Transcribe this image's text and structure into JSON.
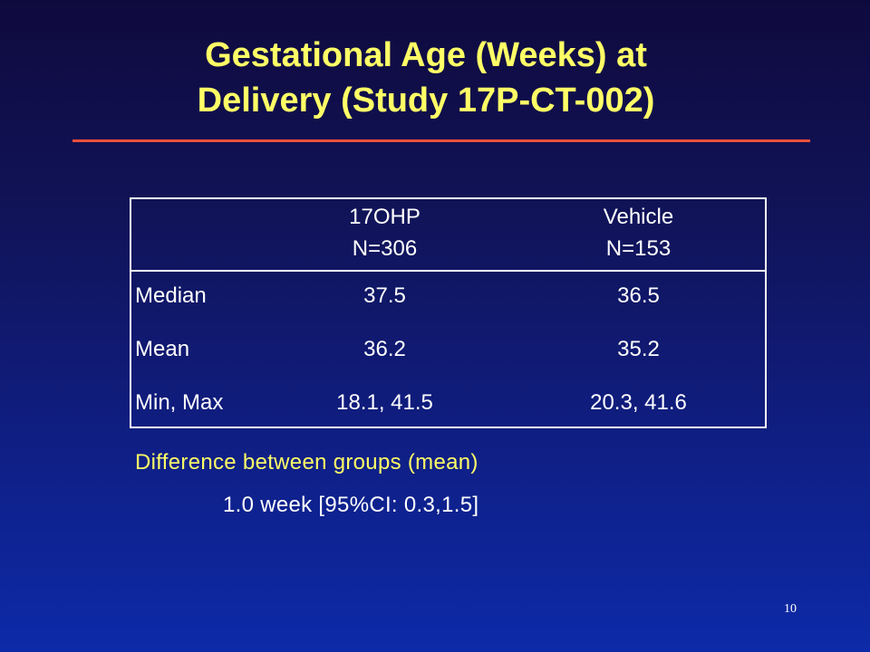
{
  "slide": {
    "title_line1": "Gestational Age (Weeks) at",
    "title_line2": "Delivery (Study 17P-CT-002)",
    "page_number": "10",
    "colors": {
      "background_top": "#0f0a3e",
      "background_bottom": "#0d2aa8",
      "title_text": "#ffff66",
      "accent_rule": "#e8503a",
      "body_text": "#ffffff"
    }
  },
  "table": {
    "header_columns": [
      {
        "line1": "17OHP",
        "line2": "N=306"
      },
      {
        "line1": "Vehicle",
        "line2": "N=153"
      }
    ],
    "rows": [
      {
        "label": "Median",
        "values": [
          "37.5",
          "36.5"
        ]
      },
      {
        "label": "Mean",
        "values": [
          "36.2",
          "35.2"
        ]
      },
      {
        "label": "Min, Max",
        "values": [
          "18.1, 41.5",
          "20.3, 41.6"
        ]
      }
    ]
  },
  "difference": {
    "heading": "Difference between groups (mean)",
    "value": "1.0 week [95%CI: 0.3,1.5]"
  }
}
